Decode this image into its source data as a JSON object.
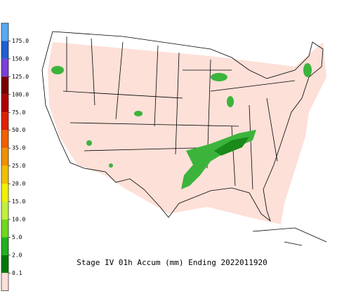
{
  "title": "Stage IV 01h Accum (mm) Ending 2022011920",
  "legend": {
    "colors": [
      "#5aa8f2",
      "#1f5fd0",
      "#7a3fd6",
      "#7a0000",
      "#b00000",
      "#e02000",
      "#f06000",
      "#f09000",
      "#f0c000",
      "#f0f000",
      "#c0f040",
      "#70d820",
      "#20b020",
      "#007800",
      "#fde0d8"
    ],
    "labels": [
      "175.0",
      "150.0",
      "125.0",
      "100.0",
      "75.0",
      "50.0",
      "35.0",
      "25.0",
      "20.0",
      "15.0",
      "10.0",
      "5.0",
      "2.0",
      "0.1"
    ]
  }
}
